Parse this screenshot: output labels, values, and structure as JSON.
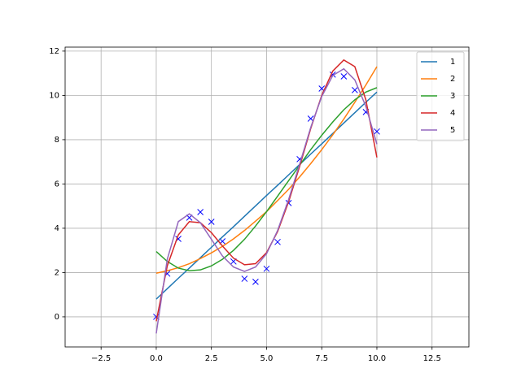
{
  "chart_data": {
    "type": "line",
    "x": [
      0,
      0.5,
      1,
      1.5,
      2,
      2.5,
      3,
      3.5,
      4,
      4.5,
      5,
      5.5,
      6,
      6.5,
      7,
      7.5,
      8,
      8.5,
      9,
      9.5,
      10
    ],
    "points": {
      "color": "#0000ff",
      "values": [
        0.0,
        1.95,
        3.52,
        4.48,
        4.73,
        4.29,
        3.41,
        2.5,
        1.72,
        1.58,
        2.17,
        3.38,
        5.14,
        7.12,
        8.95,
        10.31,
        10.94,
        10.86,
        10.24,
        9.25,
        8.37
      ]
    },
    "series": [
      {
        "name": "1",
        "color": "#1f77b4",
        "values": [
          0.8,
          1.27,
          1.74,
          2.2,
          2.67,
          3.14,
          3.61,
          4.07,
          4.54,
          5.01,
          5.48,
          5.94,
          6.41,
          6.88,
          7.35,
          7.81,
          8.28,
          8.75,
          9.22,
          9.69,
          10.15
        ]
      },
      {
        "name": "2",
        "color": "#ff7f0e",
        "values": [
          1.97,
          2.08,
          2.22,
          2.4,
          2.63,
          2.89,
          3.18,
          3.52,
          3.9,
          4.32,
          4.75,
          5.25,
          5.76,
          6.32,
          6.92,
          7.55,
          8.22,
          8.93,
          9.69,
          10.47,
          11.3
        ]
      },
      {
        "name": "3",
        "color": "#2ca02c",
        "values": [
          2.95,
          2.5,
          2.2,
          2.08,
          2.12,
          2.3,
          2.6,
          3.0,
          3.5,
          4.1,
          4.75,
          5.45,
          6.15,
          6.85,
          7.55,
          8.2,
          8.8,
          9.35,
          9.8,
          10.15,
          10.35
        ]
      },
      {
        "name": "4",
        "color": "#d62728",
        "values": [
          -0.2,
          2.3,
          3.7,
          4.3,
          4.25,
          3.8,
          3.2,
          2.65,
          2.35,
          2.4,
          2.9,
          3.85,
          5.2,
          6.8,
          8.5,
          10.0,
          11.1,
          11.6,
          11.3,
          9.8,
          7.2
        ]
      },
      {
        "name": "5",
        "color": "#9467bd",
        "values": [
          -0.75,
          2.6,
          4.3,
          4.65,
          4.25,
          3.5,
          2.75,
          2.25,
          2.05,
          2.25,
          2.85,
          3.9,
          5.3,
          6.9,
          8.55,
          9.95,
          10.9,
          11.2,
          10.7,
          9.5,
          7.8
        ]
      }
    ],
    "xlim": [
      -4.13,
      14.17
    ],
    "ylim": [
      -1.36,
      12.18
    ],
    "xticks": [
      {
        "value": -2.5,
        "label": "−2.5"
      },
      {
        "value": 0,
        "label": "0.0"
      },
      {
        "value": 2.5,
        "label": "2.5"
      },
      {
        "value": 5,
        "label": "5.0"
      },
      {
        "value": 7.5,
        "label": "7.5"
      },
      {
        "value": 10,
        "label": "10.0"
      },
      {
        "value": 12.5,
        "label": "12.5"
      }
    ],
    "yticks": [
      0,
      2,
      4,
      6,
      8,
      10,
      12
    ],
    "grid": true,
    "legend": "upper right"
  }
}
